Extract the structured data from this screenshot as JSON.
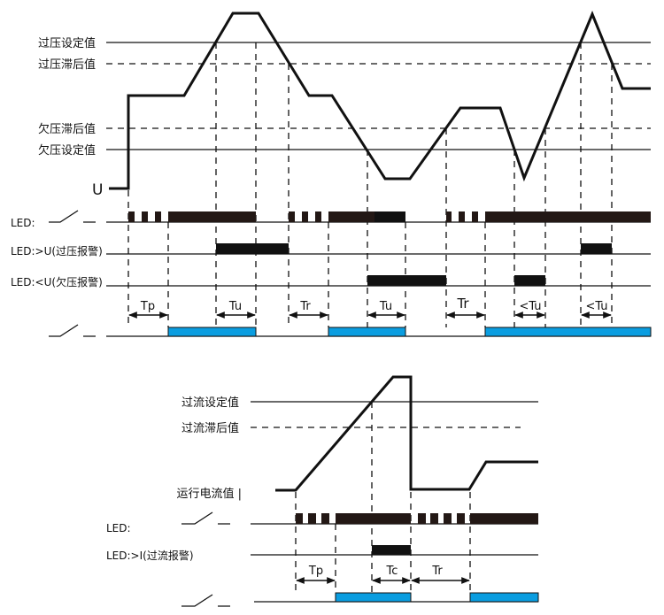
{
  "voltage_diagram": {
    "levels": {
      "overvoltage_setpoint": "过压设定值",
      "overvoltage_hysteresis": "过压滞后值",
      "undervoltage_hysteresis": "欠压滞后值",
      "undervoltage_setpoint": "欠压设定值"
    },
    "signal_label": "U",
    "rows": {
      "led": "LED:",
      "led_over": "LED:>U(过压报警)",
      "led_under": "LED:<U(欠压报警)"
    },
    "intervals": [
      "Tp",
      "Tu",
      "Tr",
      "Tu",
      "Tr",
      "<Tu",
      "<Tu"
    ]
  },
  "current_diagram": {
    "levels": {
      "overcurrent_setpoint": "过流设定值",
      "overcurrent_hysteresis": "过流滞后值",
      "running_current": "运行电流值 |"
    },
    "rows": {
      "led": "LED:",
      "led_over": "LED:>I(过流报警)"
    },
    "intervals": [
      "Tp",
      "Tc",
      "Tr"
    ]
  },
  "colors": {
    "relay_on": "#0a9de0",
    "line": "#111111"
  }
}
